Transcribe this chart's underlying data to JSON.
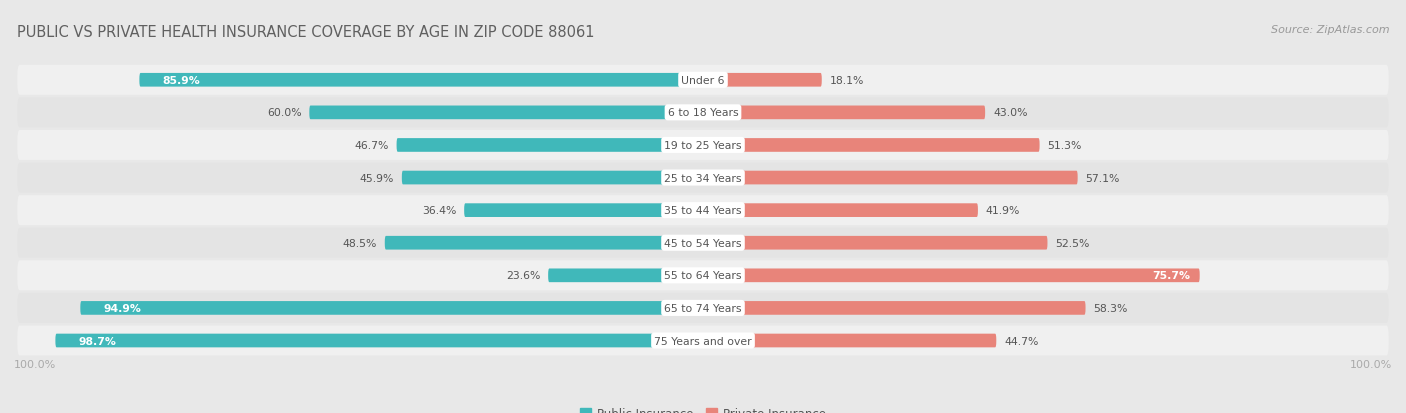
{
  "title": "PUBLIC VS PRIVATE HEALTH INSURANCE COVERAGE BY AGE IN ZIP CODE 88061",
  "source": "Source: ZipAtlas.com",
  "categories": [
    "Under 6",
    "6 to 18 Years",
    "19 to 25 Years",
    "25 to 34 Years",
    "35 to 44 Years",
    "45 to 54 Years",
    "55 to 64 Years",
    "65 to 74 Years",
    "75 Years and over"
  ],
  "public": [
    85.9,
    60.0,
    46.7,
    45.9,
    36.4,
    48.5,
    23.6,
    94.9,
    98.7
  ],
  "private": [
    18.1,
    43.0,
    51.3,
    57.1,
    41.9,
    52.5,
    75.7,
    58.3,
    44.7
  ],
  "public_color": "#40b8ba",
  "private_color": "#e8847a",
  "public_color_light": "#a8d8d8",
  "private_color_light": "#f0b8b0",
  "bg_color": "#e8e8e8",
  "row_bg_odd": "#f0f0f0",
  "row_bg_even": "#e4e4e4",
  "title_color": "#606060",
  "source_color": "#999999",
  "label_dark_color": "#555555",
  "axis_label_color": "#aaaaaa",
  "max_value": 100.0,
  "legend_labels": [
    "Public Insurance",
    "Private Insurance"
  ]
}
